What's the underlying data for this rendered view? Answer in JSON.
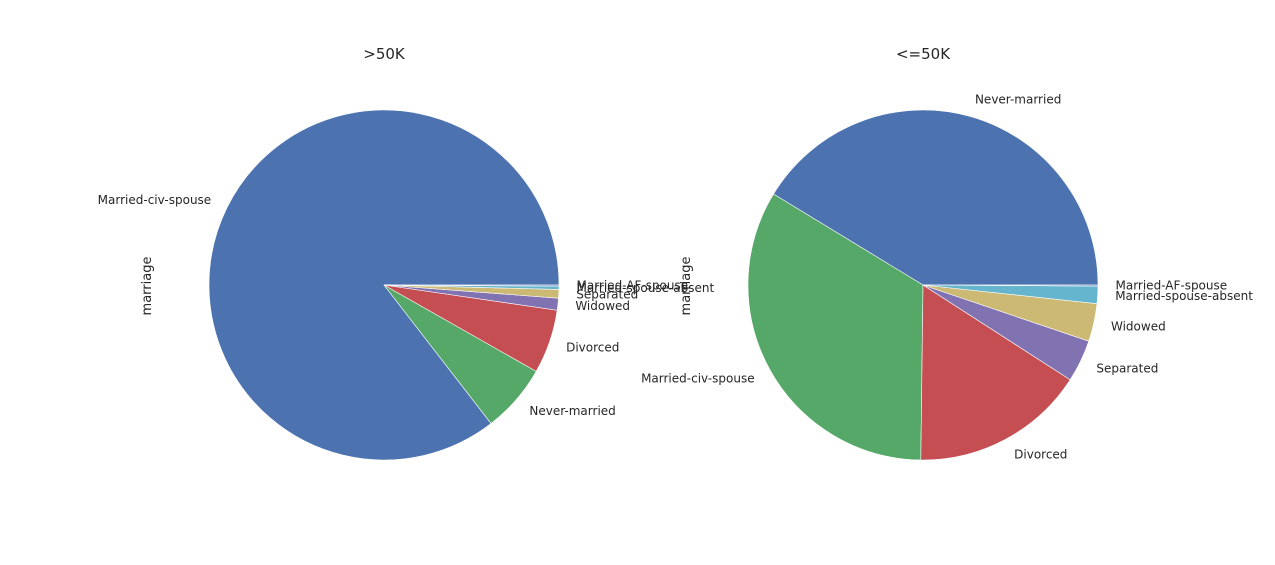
{
  "chart_data": [
    {
      "type": "pie",
      "title": ">50K",
      "ylabel": "marriage",
      "slices": [
        {
          "label": "Married-civ-spouse",
          "value": 85.3,
          "color": "#4c72b0"
        },
        {
          "label": "Never-married",
          "value": 6.3,
          "color": "#55a868"
        },
        {
          "label": "Divorced",
          "value": 5.9,
          "color": "#c44e52"
        },
        {
          "label": "Widowed",
          "value": 1.1,
          "color": "#8172b2"
        },
        {
          "label": "Separated",
          "value": 0.8,
          "color": "#ccb974"
        },
        {
          "label": "Married-spouse-absent",
          "value": 0.3,
          "color": "#64b5cd"
        },
        {
          "label": "Married-AF-spouse",
          "value": 0.1,
          "color": "#4c72b0"
        }
      ]
    },
    {
      "type": "pie",
      "title": "<=50K",
      "ylabel": "marriage",
      "slices": [
        {
          "label": "Never-married",
          "value": 41.3,
          "color": "#4c72b0"
        },
        {
          "label": "Married-civ-spouse",
          "value": 33.5,
          "color": "#55a868"
        },
        {
          "label": "Divorced",
          "value": 16.1,
          "color": "#c44e52"
        },
        {
          "label": "Separated",
          "value": 3.9,
          "color": "#8172b2"
        },
        {
          "label": "Widowed",
          "value": 3.5,
          "color": "#ccb974"
        },
        {
          "label": "Married-spouse-absent",
          "value": 1.6,
          "color": "#64b5cd"
        },
        {
          "label": "Married-AF-spouse",
          "value": 0.1,
          "color": "#4c72b0"
        }
      ]
    }
  ]
}
